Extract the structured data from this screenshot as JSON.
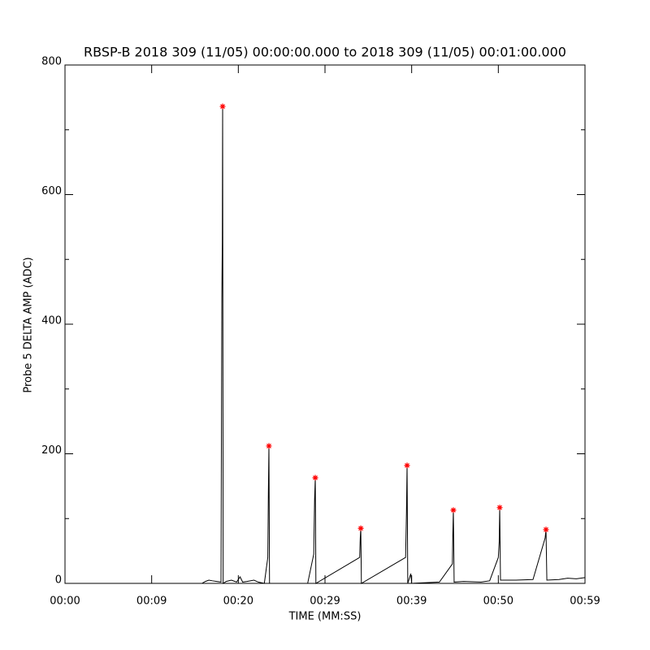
{
  "chart_data": {
    "type": "line",
    "title": "RBSP-B 2018 309 (11/05) 00:00:00.000 to 2018 309 (11/05) 00:01:00.000",
    "xlabel": "TIME (MM:SS)",
    "ylabel": "Probe 5 DELTA AMP (ADC)",
    "xlim": [
      0,
      60
    ],
    "ylim": [
      0,
      800
    ],
    "xticks": [
      {
        "value": 0,
        "label": "00:00"
      },
      {
        "value": 10,
        "label": "00:09"
      },
      {
        "value": 20,
        "label": "00:20"
      },
      {
        "value": 30,
        "label": "00:29"
      },
      {
        "value": 40,
        "label": "00:39"
      },
      {
        "value": 50,
        "label": "00:50"
      },
      {
        "value": 60,
        "label": "00:59"
      }
    ],
    "yticks": [
      0,
      200,
      400,
      600,
      800
    ],
    "yminor_ticks": [
      100,
      300,
      500,
      700
    ],
    "series": [
      {
        "color": "#000000",
        "x": [
          0,
          15.8,
          16.2,
          16.6,
          17,
          17.5,
          18.0,
          18.1,
          18.15,
          18.19,
          18.25,
          18.6,
          19.2,
          19.8,
          20.2,
          20.5,
          21,
          21.8,
          22.3,
          23.0,
          23.4,
          23.47,
          23.53,
          23.6,
          28.0,
          28.7,
          28.8,
          28.88,
          28.95,
          34.0,
          34.07,
          34.13,
          34.2,
          39.3,
          39.4,
          39.47,
          39.55,
          39.9,
          40.0,
          43.2,
          44.7,
          44.75,
          44.81,
          44.9,
          46,
          48,
          49,
          50.0,
          50.1,
          50.16,
          50.25,
          52,
          54,
          55.4,
          55.5,
          55.6,
          57,
          58,
          59,
          60
        ],
        "values": [
          0,
          0,
          3,
          5,
          4,
          3,
          2,
          440,
          525,
          736,
          0,
          3,
          5,
          2,
          10,
          2,
          3,
          5,
          2,
          0,
          40,
          145,
          212,
          0,
          0,
          45,
          130,
          163,
          0,
          40,
          70,
          85,
          0,
          40,
          110,
          182,
          0,
          15,
          0,
          2,
          30,
          75,
          113,
          2,
          3,
          2,
          4,
          40,
          65,
          117,
          5,
          5,
          6,
          70,
          83,
          5,
          6,
          8,
          7,
          9
        ]
      },
      {
        "color": "#ff0000",
        "marker": "star",
        "x": [
          18.19,
          23.53,
          28.88,
          34.13,
          39.47,
          44.81,
          50.16,
          55.5
        ],
        "values": [
          736,
          212,
          163,
          85,
          182,
          113,
          117,
          83
        ]
      }
    ]
  }
}
